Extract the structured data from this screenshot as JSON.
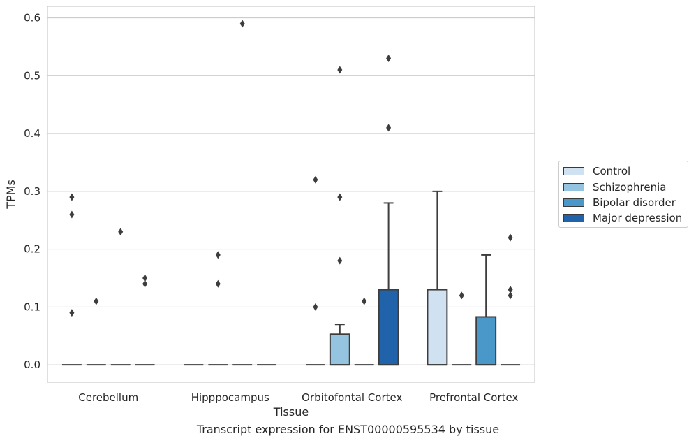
{
  "caption": "Transcript expression for ENST00000595534 by tissue",
  "chart_data": {
    "type": "box",
    "xlabel": "Tissue",
    "ylabel": "TPMs",
    "ylim": [
      -0.03,
      0.62
    ],
    "yticks": [
      "0.0",
      "0.1",
      "0.2",
      "0.3",
      "0.4",
      "0.5",
      "0.6"
    ],
    "grid": "horizontal",
    "legend_placement": "right",
    "categories": [
      "Cerebellum",
      "Hipppocampus",
      "Orbitofontal Cortex",
      "Prefrontal Cortex"
    ],
    "series": [
      {
        "name": "Control",
        "color": "#d0e1f2",
        "boxes": [
          {
            "q1": 0,
            "median": 0,
            "q3": 0,
            "whislo": 0,
            "whishi": 0,
            "fliers": [
              0.09,
              0.29,
              0.26
            ]
          },
          {
            "q1": 0,
            "median": 0,
            "q3": 0,
            "whislo": 0,
            "whishi": 0,
            "fliers": []
          },
          {
            "q1": 0,
            "median": 0,
            "q3": 0,
            "whislo": 0,
            "whishi": 0,
            "fliers": [
              0.1,
              0.32
            ]
          },
          {
            "q1": 0,
            "median": 0,
            "q3": 0.13,
            "whislo": 0,
            "whishi": 0.3,
            "fliers": []
          }
        ]
      },
      {
        "name": "Schizophrenia",
        "color": "#94c4df",
        "boxes": [
          {
            "q1": 0,
            "median": 0,
            "q3": 0,
            "whislo": 0,
            "whishi": 0,
            "fliers": [
              0.11
            ]
          },
          {
            "q1": 0,
            "median": 0,
            "q3": 0,
            "whislo": 0,
            "whishi": 0,
            "fliers": [
              0.14,
              0.19
            ]
          },
          {
            "q1": 0,
            "median": 0,
            "q3": 0.053,
            "whislo": 0,
            "whishi": 0.07,
            "fliers": [
              0.18,
              0.29,
              0.51
            ]
          },
          {
            "q1": 0,
            "median": 0,
            "q3": 0,
            "whislo": 0,
            "whishi": 0,
            "fliers": [
              0.12
            ]
          }
        ]
      },
      {
        "name": "Bipolar disorder",
        "color": "#4a98c9",
        "boxes": [
          {
            "q1": 0,
            "median": 0,
            "q3": 0,
            "whislo": 0,
            "whishi": 0,
            "fliers": [
              0.23
            ]
          },
          {
            "q1": 0,
            "median": 0,
            "q3": 0,
            "whislo": 0,
            "whishi": 0,
            "fliers": [
              0.59
            ]
          },
          {
            "q1": 0,
            "median": 0,
            "q3": 0,
            "whislo": 0,
            "whishi": 0,
            "fliers": [
              0.11
            ]
          },
          {
            "q1": 0,
            "median": 0,
            "q3": 0.083,
            "whislo": 0,
            "whishi": 0.19,
            "fliers": []
          }
        ]
      },
      {
        "name": "Major depression",
        "color": "#2163aa",
        "boxes": [
          {
            "q1": 0,
            "median": 0,
            "q3": 0,
            "whislo": 0,
            "whishi": 0,
            "fliers": [
              0.14,
              0.15
            ]
          },
          {
            "q1": 0,
            "median": 0,
            "q3": 0,
            "whislo": 0,
            "whishi": 0,
            "fliers": []
          },
          {
            "q1": 0,
            "median": 0,
            "q3": 0.13,
            "whislo": 0,
            "whishi": 0.28,
            "fliers": [
              0.41,
              0.53
            ]
          },
          {
            "q1": 0,
            "median": 0,
            "q3": 0,
            "whislo": 0,
            "whishi": 0,
            "fliers": [
              0.12,
              0.13,
              0.22
            ]
          }
        ]
      }
    ]
  }
}
